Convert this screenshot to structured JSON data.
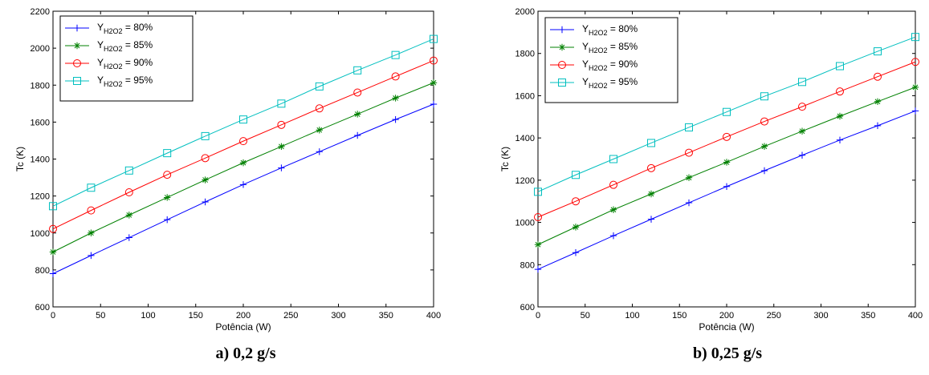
{
  "chart_data": [
    {
      "type": "line",
      "caption": "a) 0,2 g/s",
      "xlabel": "Potência (W)",
      "ylabel": "Tc (K)",
      "xlim": [
        0,
        400
      ],
      "ylim": [
        600,
        2200
      ],
      "xticks": [
        0,
        50,
        100,
        150,
        200,
        250,
        300,
        350,
        400
      ],
      "yticks": [
        600,
        800,
        1000,
        1200,
        1400,
        1600,
        1800,
        2000,
        2200
      ],
      "grid": false,
      "legend_position": "top-left",
      "x": [
        0,
        40,
        80,
        120,
        160,
        200,
        240,
        280,
        320,
        360,
        400
      ],
      "series": [
        {
          "name": "Y H2O2 = 80%",
          "name_main": "Y",
          "name_sub": "H2O2",
          "name_rest": " = 80%",
          "color": "#0000ff",
          "marker": "plus",
          "values": [
            780,
            878,
            975,
            1072,
            1168,
            1262,
            1352,
            1440,
            1528,
            1614,
            1697
          ]
        },
        {
          "name": "Y H2O2 = 85%",
          "name_main": "Y",
          "name_sub": "H2O2",
          "name_rest": " = 85%",
          "color": "#008000",
          "marker": "star",
          "values": [
            897,
            1000,
            1097,
            1192,
            1287,
            1380,
            1468,
            1557,
            1643,
            1730,
            1813
          ]
        },
        {
          "name": "Y H2O2 = 90%",
          "name_main": "Y",
          "name_sub": "H2O2",
          "name_rest": " = 90%",
          "color": "#ff0000",
          "marker": "circle",
          "values": [
            1022,
            1122,
            1220,
            1315,
            1405,
            1497,
            1585,
            1674,
            1760,
            1847,
            1933
          ]
        },
        {
          "name": "Y H2O2 = 95%",
          "name_main": "Y",
          "name_sub": "H2O2",
          "name_rest": " = 95%",
          "color": "#00bfbf",
          "marker": "square",
          "values": [
            1145,
            1245,
            1338,
            1432,
            1524,
            1614,
            1700,
            1793,
            1880,
            1963,
            2050
          ]
        }
      ]
    },
    {
      "type": "line",
      "caption": "b) 0,25 g/s",
      "xlabel": "Potência (W)",
      "ylabel": "Tc (K)",
      "xlim": [
        0,
        400
      ],
      "ylim": [
        600,
        2000
      ],
      "xticks": [
        0,
        50,
        100,
        150,
        200,
        250,
        300,
        350,
        400
      ],
      "yticks": [
        600,
        800,
        1000,
        1200,
        1400,
        1600,
        1800,
        2000
      ],
      "grid": false,
      "legend_position": "top-left",
      "x": [
        0,
        40,
        80,
        120,
        160,
        200,
        240,
        280,
        320,
        360,
        400
      ],
      "series": [
        {
          "name": "Y H2O2 = 80%",
          "name_main": "Y",
          "name_sub": "H2O2",
          "name_rest": " = 80%",
          "color": "#0000ff",
          "marker": "plus",
          "values": [
            778,
            857,
            937,
            1015,
            1093,
            1170,
            1245,
            1318,
            1390,
            1458,
            1528
          ]
        },
        {
          "name": "Y H2O2 = 85%",
          "name_main": "Y",
          "name_sub": "H2O2",
          "name_rest": " = 85%",
          "color": "#008000",
          "marker": "star",
          "values": [
            895,
            978,
            1060,
            1135,
            1212,
            1285,
            1360,
            1432,
            1503,
            1572,
            1640
          ]
        },
        {
          "name": "Y H2O2 = 90%",
          "name_main": "Y",
          "name_sub": "H2O2",
          "name_rest": " = 90%",
          "color": "#ff0000",
          "marker": "circle",
          "values": [
            1025,
            1100,
            1178,
            1257,
            1330,
            1405,
            1478,
            1548,
            1620,
            1690,
            1760
          ]
        },
        {
          "name": "Y H2O2 = 95%",
          "name_main": "Y",
          "name_sub": "H2O2",
          "name_rest": " = 95%",
          "color": "#00bfbf",
          "marker": "square",
          "values": [
            1145,
            1225,
            1300,
            1376,
            1450,
            1523,
            1597,
            1665,
            1740,
            1810,
            1878
          ]
        }
      ]
    }
  ]
}
